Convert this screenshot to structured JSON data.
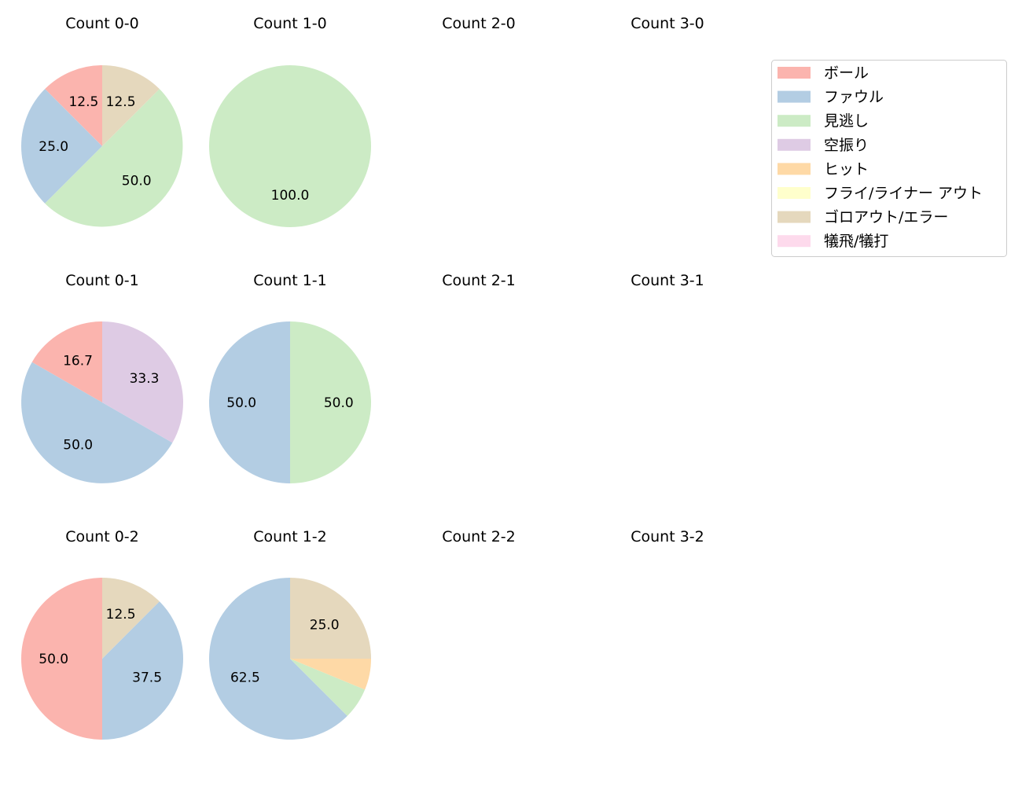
{
  "chart_data": {
    "type": "pie",
    "categories": [
      "ボール",
      "ファウル",
      "見逃し",
      "空振り",
      "ヒット",
      "フライ/ライナー アウト",
      "ゴロアウト/エラー",
      "犠飛/犠打"
    ],
    "colors": [
      "#fbb4ae",
      "#b3cde3",
      "#ccebc5",
      "#decbe4",
      "#fed9a6",
      "#ffffcc",
      "#e5d8bd",
      "#fddaec"
    ],
    "legend": {
      "placement": "top-right",
      "entries": [
        "ボール",
        "ファウル",
        "見逃し",
        "空振り",
        "ヒット",
        "フライ/ライナー アウト",
        "ゴロアウト/エラー",
        "犠飛/犠打"
      ]
    },
    "panels": [
      {
        "title": "Count 0-0",
        "values": [
          12.5,
          25.0,
          50.0,
          0,
          0,
          0,
          12.5,
          0
        ],
        "labels": [
          "12.5",
          "25.0",
          "50.0",
          "",
          "",
          "",
          "12.5",
          ""
        ]
      },
      {
        "title": "Count 1-0",
        "values": [
          0,
          0,
          100.0,
          0,
          0,
          0,
          0,
          0
        ],
        "labels": [
          "",
          "",
          "100.0",
          "",
          "",
          "",
          "",
          ""
        ]
      },
      {
        "title": "Count 2-0",
        "values": [],
        "labels": []
      },
      {
        "title": "Count 3-0",
        "values": [],
        "labels": []
      },
      {
        "title": "Count 0-1",
        "values": [
          16.7,
          50.0,
          0,
          33.3,
          0,
          0,
          0,
          0
        ],
        "labels": [
          "16.7",
          "50.0",
          "",
          "33.3",
          "",
          "",
          "",
          ""
        ]
      },
      {
        "title": "Count 1-1",
        "values": [
          0,
          50.0,
          50.0,
          0,
          0,
          0,
          0,
          0
        ],
        "labels": [
          "",
          "50.0",
          "50.0",
          "",
          "",
          "",
          "",
          ""
        ]
      },
      {
        "title": "Count 2-1",
        "values": [],
        "labels": []
      },
      {
        "title": "Count 3-1",
        "values": [],
        "labels": []
      },
      {
        "title": "Count 0-2",
        "values": [
          50.0,
          37.5,
          0,
          0,
          0,
          0,
          12.5,
          0
        ],
        "labels": [
          "50.0",
          "37.5",
          "",
          "",
          "",
          "",
          "12.5",
          ""
        ]
      },
      {
        "title": "Count 1-2",
        "values": [
          0,
          62.5,
          6.25,
          0,
          6.25,
          0,
          25.0,
          0
        ],
        "labels": [
          "",
          "62.5",
          "",
          "",
          "",
          "",
          "25.0",
          ""
        ]
      },
      {
        "title": "Count 2-2",
        "values": [],
        "labels": []
      },
      {
        "title": "Count 3-2",
        "values": [],
        "labels": []
      }
    ]
  }
}
